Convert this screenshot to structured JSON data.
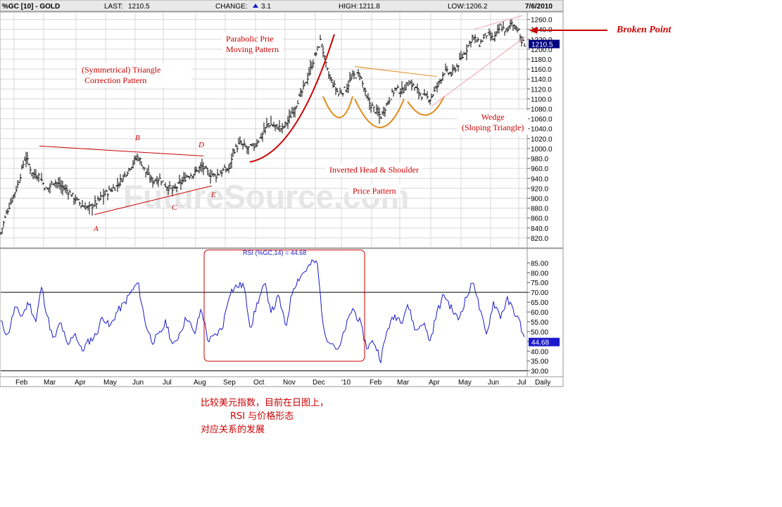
{
  "header": {
    "symbol": "%GC [10] - GOLD",
    "last_label": "LAST:",
    "last_value": "1210.5",
    "change_label": "CHANGE:",
    "change_value": "3.1",
    "high_label": "HIGH:",
    "high_value": "1211.8",
    "low_label": "LOW:",
    "low_value": "1206.2",
    "date": "7/6/2010"
  },
  "colors": {
    "price_bars": "#000000",
    "rsi_line": "#1a1acc",
    "annotation_red": "#cc0000",
    "annotation_orange": "#e08a18",
    "wedge_pink": "#e8a0b0",
    "panel_bg": "#ffffff",
    "grid": "#d8d8d8",
    "header_bg": "#e9e9e9"
  },
  "chart_data": [
    {
      "type": "ohlc",
      "title": "%GC [10] - GOLD",
      "ylim": [
        800,
        1275
      ],
      "y_ticks": [
        "1260.0",
        "1240.0",
        "1220.0",
        "1200.0",
        "1180.0",
        "1160.0",
        "1140.0",
        "1120.0",
        "1100.0",
        "1080.0",
        "1060.0",
        "1040.0",
        "1020.0",
        "1000.0",
        "980.0",
        "960.0",
        "940.0",
        "920.0",
        "900.0",
        "880.0",
        "860.0",
        "840.0",
        "820.0"
      ],
      "last_price_label": "1210.5",
      "x_labels": [
        "Feb",
        "Mar",
        "Apr",
        "May",
        "Jun",
        "Jul",
        "Aug",
        "Sep",
        "Oct",
        "Nov",
        "Dec",
        "'10",
        "Feb",
        "Mar",
        "Apr",
        "May",
        "Jun",
        "Jul",
        "Daily"
      ],
      "grid": true,
      "approx_close_series": [
        {
          "t": 0,
          "v": 830
        },
        {
          "t": 8,
          "v": 870
        },
        {
          "t": 25,
          "v": 930
        },
        {
          "t": 35,
          "v": 985
        },
        {
          "t": 45,
          "v": 950
        },
        {
          "t": 55,
          "v": 945
        },
        {
          "t": 65,
          "v": 915
        },
        {
          "t": 75,
          "v": 935
        },
        {
          "t": 85,
          "v": 925
        },
        {
          "t": 95,
          "v": 915
        },
        {
          "t": 105,
          "v": 900
        },
        {
          "t": 115,
          "v": 885
        },
        {
          "t": 125,
          "v": 880
        },
        {
          "t": 135,
          "v": 890
        },
        {
          "t": 145,
          "v": 905
        },
        {
          "t": 155,
          "v": 915
        },
        {
          "t": 165,
          "v": 925
        },
        {
          "t": 175,
          "v": 945
        },
        {
          "t": 185,
          "v": 965
        },
        {
          "t": 195,
          "v": 985
        },
        {
          "t": 205,
          "v": 955
        },
        {
          "t": 215,
          "v": 935
        },
        {
          "t": 225,
          "v": 940
        },
        {
          "t": 235,
          "v": 925
        },
        {
          "t": 245,
          "v": 915
        },
        {
          "t": 255,
          "v": 930
        },
        {
          "t": 265,
          "v": 945
        },
        {
          "t": 275,
          "v": 950
        },
        {
          "t": 285,
          "v": 965
        },
        {
          "t": 295,
          "v": 950
        },
        {
          "t": 305,
          "v": 945
        },
        {
          "t": 315,
          "v": 955
        },
        {
          "t": 325,
          "v": 960
        },
        {
          "t": 330,
          "v": 995
        },
        {
          "t": 340,
          "v": 1010
        },
        {
          "t": 350,
          "v": 1000
        },
        {
          "t": 360,
          "v": 1005
        },
        {
          "t": 370,
          "v": 1025
        },
        {
          "t": 380,
          "v": 1050
        },
        {
          "t": 390,
          "v": 1045
        },
        {
          "t": 400,
          "v": 1040
        },
        {
          "t": 410,
          "v": 1060
        },
        {
          "t": 420,
          "v": 1090
        },
        {
          "t": 430,
          "v": 1120
        },
        {
          "t": 440,
          "v": 1160
        },
        {
          "t": 450,
          "v": 1200
        },
        {
          "t": 455,
          "v": 1220
        },
        {
          "t": 460,
          "v": 1180
        },
        {
          "t": 465,
          "v": 1150
        },
        {
          "t": 470,
          "v": 1135
        },
        {
          "t": 480,
          "v": 1110
        },
        {
          "t": 490,
          "v": 1120
        },
        {
          "t": 500,
          "v": 1145
        },
        {
          "t": 510,
          "v": 1150
        },
        {
          "t": 520,
          "v": 1100
        },
        {
          "t": 530,
          "v": 1080
        },
        {
          "t": 540,
          "v": 1065
        },
        {
          "t": 550,
          "v": 1095
        },
        {
          "t": 560,
          "v": 1120
        },
        {
          "t": 570,
          "v": 1115
        },
        {
          "t": 580,
          "v": 1135
        },
        {
          "t": 590,
          "v": 1120
        },
        {
          "t": 600,
          "v": 1105
        },
        {
          "t": 610,
          "v": 1100
        },
        {
          "t": 620,
          "v": 1125
        },
        {
          "t": 630,
          "v": 1155
        },
        {
          "t": 640,
          "v": 1150
        },
        {
          "t": 650,
          "v": 1170
        },
        {
          "t": 660,
          "v": 1195
        },
        {
          "t": 670,
          "v": 1225
        },
        {
          "t": 680,
          "v": 1210
        },
        {
          "t": 690,
          "v": 1230
        },
        {
          "t": 700,
          "v": 1220
        },
        {
          "t": 710,
          "v": 1245
        },
        {
          "t": 720,
          "v": 1235
        },
        {
          "t": 725,
          "v": 1255
        },
        {
          "t": 735,
          "v": 1240
        },
        {
          "t": 740,
          "v": 1215
        },
        {
          "t": 745,
          "v": 1210
        }
      ]
    },
    {
      "type": "line",
      "title": "RSI (%GC,14) = 44.68",
      "ylim": [
        27,
        88
      ],
      "y_ticks": [
        "85.00",
        "80.00",
        "75.00",
        "70.00",
        "65.00",
        "60.00",
        "55.00",
        "50.00",
        "45.00",
        "40.00",
        "35.00",
        "30.00"
      ],
      "reference_lines": [
        70,
        30
      ],
      "last_value_label": "44.68",
      "series": [
        {
          "values_by_t": [
            {
              "t": 0,
              "v": 55
            },
            {
              "t": 10,
              "v": 48
            },
            {
              "t": 20,
              "v": 62
            },
            {
              "t": 30,
              "v": 58
            },
            {
              "t": 40,
              "v": 65
            },
            {
              "t": 50,
              "v": 55
            },
            {
              "t": 58,
              "v": 73
            },
            {
              "t": 65,
              "v": 60
            },
            {
              "t": 75,
              "v": 45
            },
            {
              "t": 85,
              "v": 55
            },
            {
              "t": 95,
              "v": 42
            },
            {
              "t": 105,
              "v": 50
            },
            {
              "t": 115,
              "v": 40
            },
            {
              "t": 125,
              "v": 45
            },
            {
              "t": 135,
              "v": 48
            },
            {
              "t": 145,
              "v": 58
            },
            {
              "t": 155,
              "v": 52
            },
            {
              "t": 165,
              "v": 60
            },
            {
              "t": 175,
              "v": 64
            },
            {
              "t": 185,
              "v": 70
            },
            {
              "t": 195,
              "v": 75
            },
            {
              "t": 205,
              "v": 55
            },
            {
              "t": 215,
              "v": 45
            },
            {
              "t": 225,
              "v": 48
            },
            {
              "t": 235,
              "v": 55
            },
            {
              "t": 245,
              "v": 42
            },
            {
              "t": 255,
              "v": 50
            },
            {
              "t": 265,
              "v": 58
            },
            {
              "t": 275,
              "v": 48
            },
            {
              "t": 285,
              "v": 62
            },
            {
              "t": 295,
              "v": 45
            },
            {
              "t": 305,
              "v": 48
            },
            {
              "t": 315,
              "v": 52
            },
            {
              "t": 325,
              "v": 70
            },
            {
              "t": 335,
              "v": 73
            },
            {
              "t": 345,
              "v": 74
            },
            {
              "t": 355,
              "v": 52
            },
            {
              "t": 365,
              "v": 65
            },
            {
              "t": 375,
              "v": 74
            },
            {
              "t": 385,
              "v": 60
            },
            {
              "t": 395,
              "v": 68
            },
            {
              "t": 405,
              "v": 52
            },
            {
              "t": 415,
              "v": 72
            },
            {
              "t": 425,
              "v": 78
            },
            {
              "t": 435,
              "v": 82
            },
            {
              "t": 445,
              "v": 86
            },
            {
              "t": 450,
              "v": 84
            },
            {
              "t": 455,
              "v": 65
            },
            {
              "t": 460,
              "v": 48
            },
            {
              "t": 470,
              "v": 45
            },
            {
              "t": 480,
              "v": 40
            },
            {
              "t": 490,
              "v": 52
            },
            {
              "t": 500,
              "v": 62
            },
            {
              "t": 510,
              "v": 55
            },
            {
              "t": 520,
              "v": 42
            },
            {
              "t": 530,
              "v": 45
            },
            {
              "t": 540,
              "v": 36
            },
            {
              "t": 550,
              "v": 52
            },
            {
              "t": 560,
              "v": 58
            },
            {
              "t": 570,
              "v": 56
            },
            {
              "t": 578,
              "v": 64
            },
            {
              "t": 590,
              "v": 50
            },
            {
              "t": 600,
              "v": 55
            },
            {
              "t": 610,
              "v": 45
            },
            {
              "t": 620,
              "v": 60
            },
            {
              "t": 630,
              "v": 69
            },
            {
              "t": 640,
              "v": 62
            },
            {
              "t": 650,
              "v": 56
            },
            {
              "t": 660,
              "v": 66
            },
            {
              "t": 672,
              "v": 76
            },
            {
              "t": 680,
              "v": 62
            },
            {
              "t": 690,
              "v": 48
            },
            {
              "t": 700,
              "v": 65
            },
            {
              "t": 710,
              "v": 58
            },
            {
              "t": 720,
              "v": 66
            },
            {
              "t": 730,
              "v": 60
            },
            {
              "t": 738,
              "v": 54
            },
            {
              "t": 745,
              "v": 44.68
            }
          ]
        }
      ]
    }
  ],
  "annotations": {
    "triangle_title_1": "(Symmetrical) Triangle",
    "triangle_title_2": "Correction Pattern",
    "parabolic_1": "Parabolic Prie",
    "parabolic_2": "Moving Pattern",
    "inverted_hs": "Inverted Head & Shoulder",
    "price_pattern": "Price Pattern",
    "wedge_1": "Wedge",
    "wedge_2": "(Sloping Triangle)",
    "broken_point": "Broken Point",
    "point_a": "A",
    "point_b": "B",
    "point_c": "C",
    "point_d": "D",
    "point_e": "E",
    "watermark": "FutureSource.com"
  },
  "chinese_note": {
    "line1": "比较美元指数，目前在日图上，",
    "line2": "RSI 与价格形态",
    "line3": "对应关系的发展"
  }
}
